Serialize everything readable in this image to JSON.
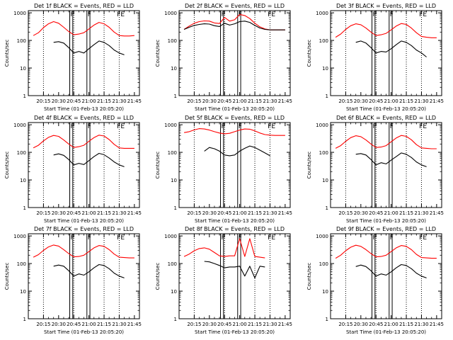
{
  "figure": {
    "background": "#ffffff",
    "axis_color": "#000000",
    "events_color": "#000000",
    "lld_color": "#ff0000"
  },
  "chart_data": [
    {
      "type": "line",
      "title": "Det 1f BLACK = Events, RED = LLD",
      "ylabel": "Counts/sec",
      "xlabel": "Start Time (01-Feb-13 20:05:20)",
      "xticks": [
        "20:15",
        "20:30",
        "20:45",
        "21:00",
        "21:15",
        "21:30",
        "21:45"
      ],
      "yticks": [
        "1",
        "10",
        "100",
        "1000"
      ],
      "yscale": "log",
      "ylim": [
        1,
        1200
      ],
      "x_minutes_since_start": [
        0,
        5,
        10,
        15,
        20,
        25,
        30,
        35,
        40,
        45,
        50,
        55,
        60,
        65,
        70,
        75,
        80,
        85,
        90,
        95,
        100
      ],
      "series": [
        {
          "name": "LLD",
          "values": [
            150,
            190,
            290,
            400,
            480,
            420,
            300,
            210,
            160,
            170,
            190,
            260,
            360,
            450,
            400,
            300,
            200,
            150,
            145,
            145,
            150
          ]
        },
        {
          "name": "Events",
          "values": [
            null,
            null,
            null,
            null,
            85,
            90,
            80,
            55,
            35,
            40,
            35,
            50,
            70,
            95,
            85,
            65,
            45,
            35,
            30,
            null,
            null
          ]
        }
      ],
      "vlines": {
        "dotted_min": [
          10,
          40,
          70,
          85
        ],
        "solid_min": [
          36,
          39,
          53,
          56
        ],
        "flag_min": [
          36,
          53,
          82
        ],
        "flag_labels": [
          "F",
          "F",
          "FE"
        ]
      }
    },
    {
      "type": "line",
      "title": "Det 2f BLACK = Events, RED = LLD",
      "ylabel": "Counts/sec",
      "xlabel": "Start Time (01-Feb-13 20:05:20)",
      "xticks": [
        "20:15",
        "20:30",
        "20:45",
        "21:00",
        "21:15",
        "21:30",
        "21:45"
      ],
      "yticks": [
        "1",
        "10",
        "100",
        "1000"
      ],
      "yscale": "log",
      "ylim": [
        1,
        1200
      ],
      "x_minutes_since_start": [
        0,
        5,
        10,
        15,
        20,
        25,
        30,
        35,
        40,
        45,
        50,
        55,
        60,
        65,
        70,
        75,
        80,
        85,
        90,
        95,
        100
      ],
      "series": [
        {
          "name": "LLD",
          "values": [
            250,
            330,
            420,
            480,
            510,
            500,
            430,
            410,
            680,
            500,
            560,
            870,
            800,
            620,
            420,
            310,
            260,
            240,
            240,
            240,
            240
          ]
        },
        {
          "name": "Events",
          "values": [
            250,
            300,
            350,
            380,
            400,
            390,
            340,
            320,
            420,
            360,
            400,
            480,
            500,
            450,
            350,
            280,
            250,
            240,
            240,
            240,
            240
          ]
        }
      ],
      "vlines": {
        "dotted_min": [
          10,
          40,
          70,
          85
        ],
        "solid_min": [
          36,
          39,
          53,
          56
        ],
        "flag_min": [
          36,
          53,
          82
        ],
        "flag_labels": [
          "F",
          "F",
          "FE"
        ]
      }
    },
    {
      "type": "line",
      "title": "Det 3f BLACK = Events, RED = LLD",
      "ylabel": "Counts/sec",
      "xlabel": "Start Time (01-Feb-13 20:05:20)",
      "xticks": [
        "20:15",
        "20:30",
        "20:45",
        "21:00",
        "21:15",
        "21:30",
        "21:45"
      ],
      "yticks": [
        "1",
        "10",
        "100",
        "1000"
      ],
      "yscale": "log",
      "ylim": [
        1,
        1200
      ],
      "x_minutes_since_start": [
        0,
        5,
        10,
        15,
        20,
        25,
        30,
        35,
        40,
        45,
        50,
        55,
        60,
        65,
        70,
        75,
        80,
        85,
        90,
        95,
        100
      ],
      "series": [
        {
          "name": "LLD",
          "values": [
            130,
            170,
            250,
            340,
            400,
            370,
            280,
            200,
            150,
            160,
            180,
            240,
            330,
            410,
            380,
            280,
            190,
            140,
            130,
            125,
            125
          ]
        },
        {
          "name": "Events",
          "values": [
            null,
            null,
            null,
            null,
            85,
            95,
            80,
            55,
            35,
            40,
            38,
            50,
            70,
            95,
            85,
            65,
            45,
            35,
            25,
            null,
            null
          ]
        }
      ],
      "vlines": {
        "dotted_min": [
          10,
          40,
          70,
          85
        ],
        "solid_min": [
          36,
          39,
          53,
          56
        ],
        "flag_min": [
          36,
          53,
          82
        ],
        "flag_labels": [
          "F",
          "F",
          "FE"
        ]
      }
    },
    {
      "type": "line",
      "title": "Det 4f BLACK = Events, RED = LLD",
      "ylabel": "Counts/sec",
      "xlabel": "Start Time (01-Feb-13 20:05:20)",
      "xticks": [
        "20:15",
        "20:30",
        "20:45",
        "21:00",
        "21:15",
        "21:30",
        "21:45"
      ],
      "yticks": [
        "1",
        "10",
        "100",
        "1000"
      ],
      "yscale": "log",
      "ylim": [
        1,
        1200
      ],
      "x_minutes_since_start": [
        0,
        5,
        10,
        15,
        20,
        25,
        30,
        35,
        40,
        45,
        50,
        55,
        60,
        65,
        70,
        75,
        80,
        85,
        90,
        95,
        100
      ],
      "series": [
        {
          "name": "LLD",
          "values": [
            145,
            180,
            260,
            350,
            410,
            380,
            280,
            200,
            150,
            160,
            180,
            250,
            340,
            420,
            390,
            290,
            195,
            145,
            140,
            140,
            140
          ]
        },
        {
          "name": "Events",
          "values": [
            null,
            null,
            null,
            null,
            80,
            88,
            78,
            55,
            35,
            40,
            36,
            50,
            70,
            92,
            82,
            62,
            45,
            35,
            30,
            null,
            null
          ]
        }
      ],
      "vlines": {
        "dotted_min": [
          10,
          40,
          70,
          85
        ],
        "solid_min": [
          36,
          39,
          53,
          56
        ],
        "flag_min": [
          36,
          53,
          82
        ],
        "flag_labels": [
          "F",
          "F",
          "FE"
        ]
      }
    },
    {
      "type": "line",
      "title": "Det 5f BLACK = Events, RED = LLD",
      "ylabel": "Counts/sec",
      "xlabel": "Start Time (01-Feb-13 20:05:20)",
      "xticks": [
        "20:15",
        "20:30",
        "20:45",
        "21:00",
        "21:15",
        "21:30",
        "21:45"
      ],
      "yticks": [
        "1",
        "10",
        "100",
        "1000"
      ],
      "yscale": "log",
      "ylim": [
        1,
        1200
      ],
      "x_minutes_since_start": [
        0,
        5,
        10,
        15,
        20,
        25,
        30,
        35,
        40,
        45,
        50,
        55,
        60,
        65,
        70,
        75,
        80,
        85,
        90,
        95,
        100
      ],
      "series": [
        {
          "name": "LLD",
          "values": [
            520,
            560,
            650,
            720,
            700,
            640,
            560,
            500,
            470,
            490,
            560,
            640,
            700,
            690,
            600,
            500,
            440,
            420,
            410,
            410,
            410
          ]
        },
        {
          "name": "Events",
          "values": [
            null,
            null,
            null,
            null,
            110,
            150,
            135,
            110,
            80,
            75,
            80,
            110,
            140,
            170,
            150,
            120,
            95,
            75,
            null,
            null,
            null
          ]
        }
      ],
      "vlines": {
        "dotted_min": [
          10,
          40,
          70,
          85
        ],
        "solid_min": [
          36,
          39,
          53,
          56
        ],
        "flag_min": [
          36,
          53,
          82
        ],
        "flag_labels": [
          "F",
          "F",
          "FE"
        ]
      }
    },
    {
      "type": "line",
      "title": "Det 6f BLACK = Events, RED = LLD",
      "ylabel": "Counts/sec",
      "xlabel": "Start Time (01-Feb-13 20:05:20)",
      "xticks": [
        "20:15",
        "20:30",
        "20:45",
        "21:00",
        "21:15",
        "21:30",
        "21:45"
      ],
      "yticks": [
        "1",
        "10",
        "100",
        "1000"
      ],
      "yscale": "log",
      "ylim": [
        1,
        1200
      ],
      "x_minutes_since_start": [
        0,
        5,
        10,
        15,
        20,
        25,
        30,
        35,
        40,
        45,
        50,
        55,
        60,
        65,
        70,
        75,
        80,
        85,
        90,
        95,
        100
      ],
      "series": [
        {
          "name": "LLD",
          "values": [
            140,
            175,
            250,
            340,
            400,
            370,
            280,
            200,
            150,
            155,
            175,
            240,
            330,
            410,
            380,
            285,
            190,
            145,
            140,
            135,
            135
          ]
        },
        {
          "name": "Events",
          "values": [
            null,
            null,
            null,
            null,
            85,
            90,
            80,
            55,
            35,
            42,
            38,
            52,
            70,
            95,
            85,
            65,
            45,
            35,
            30,
            null,
            null
          ]
        }
      ],
      "vlines": {
        "dotted_min": [
          10,
          40,
          70,
          85
        ],
        "solid_min": [
          36,
          39,
          53,
          56
        ],
        "flag_min": [
          36,
          53,
          82
        ],
        "flag_labels": [
          "F",
          "F",
          "FE"
        ]
      }
    },
    {
      "type": "line",
      "title": "Det 7f BLACK = Events, RED = LLD",
      "ylabel": "Counts/sec",
      "xlabel": "Start Time (01-Feb-13 20:05:20)",
      "xticks": [
        "20:15",
        "20:30",
        "20:45",
        "21:00",
        "21:15",
        "21:30",
        "21:45"
      ],
      "yticks": [
        "1",
        "10",
        "100",
        "1000"
      ],
      "yscale": "log",
      "ylim": [
        1,
        1200
      ],
      "x_minutes_since_start": [
        0,
        5,
        10,
        15,
        20,
        25,
        30,
        35,
        40,
        45,
        50,
        55,
        60,
        65,
        70,
        75,
        80,
        85,
        90,
        95,
        100
      ],
      "series": [
        {
          "name": "LLD",
          "values": [
            170,
            210,
            300,
            400,
            470,
            430,
            320,
            230,
            175,
            180,
            200,
            270,
            370,
            450,
            420,
            320,
            220,
            170,
            165,
            160,
            160
          ]
        },
        {
          "name": "Events",
          "values": [
            null,
            null,
            null,
            null,
            80,
            88,
            80,
            55,
            35,
            42,
            38,
            50,
            70,
            92,
            85,
            65,
            45,
            35,
            30,
            null,
            null
          ]
        }
      ],
      "vlines": {
        "dotted_min": [
          10,
          40,
          70,
          85
        ],
        "solid_min": [
          36,
          39,
          53,
          56
        ],
        "flag_min": [
          36,
          53,
          82
        ],
        "flag_labels": [
          "F",
          "F",
          "FE"
        ]
      }
    },
    {
      "type": "line",
      "title": "Det 8f BLACK = Events, RED = LLD",
      "ylabel": "Counts/sec",
      "xlabel": "Start Time (01-Feb-13 20:05:20)",
      "xticks": [
        "20:15",
        "20:30",
        "20:45",
        "21:00",
        "21:15",
        "21:30",
        "21:45"
      ],
      "yticks": [
        "1",
        "10",
        "100",
        "1000"
      ],
      "yscale": "log",
      "ylim": [
        1,
        1200
      ],
      "x_minutes_since_start": [
        0,
        5,
        10,
        15,
        20,
        25,
        30,
        35,
        40,
        45,
        50,
        55,
        60,
        65,
        70,
        75,
        80,
        85,
        90,
        95,
        100
      ],
      "series": [
        {
          "name": "LLD",
          "values": [
            180,
            220,
            290,
            350,
            370,
            330,
            250,
            190,
            180,
            190,
            190,
            800,
            180,
            800,
            180,
            170,
            160,
            null,
            null,
            null,
            null
          ]
        },
        {
          "name": "Events",
          "values": [
            null,
            null,
            null,
            null,
            120,
            115,
            100,
            85,
            70,
            75,
            75,
            80,
            35,
            80,
            30,
            80,
            75,
            null,
            null,
            null,
            null
          ]
        }
      ],
      "vlines": {
        "dotted_min": [
          10,
          40,
          70,
          85
        ],
        "solid_min": [
          36,
          39,
          53,
          56
        ],
        "flag_min": [
          36,
          53,
          82
        ],
        "flag_labels": [
          "F",
          "F",
          "FE"
        ]
      }
    },
    {
      "type": "line",
      "title": "Det 9f BLACK = Events, RED = LLD",
      "ylabel": "Counts/sec",
      "xlabel": "Start Time (01-Feb-13 20:05:20)",
      "xticks": [
        "20:15",
        "20:30",
        "20:45",
        "21:00",
        "21:15",
        "21:30",
        "21:45"
      ],
      "yticks": [
        "1",
        "10",
        "100",
        "1000"
      ],
      "yscale": "log",
      "ylim": [
        1,
        1200
      ],
      "x_minutes_since_start": [
        0,
        5,
        10,
        15,
        20,
        25,
        30,
        35,
        40,
        45,
        50,
        55,
        60,
        65,
        70,
        75,
        80,
        85,
        90,
        95,
        100
      ],
      "series": [
        {
          "name": "LLD",
          "values": [
            155,
            200,
            290,
            390,
            460,
            420,
            320,
            230,
            175,
            180,
            200,
            270,
            370,
            450,
            420,
            320,
            215,
            165,
            160,
            155,
            155
          ]
        },
        {
          "name": "Events",
          "values": [
            null,
            null,
            null,
            null,
            78,
            88,
            78,
            55,
            35,
            42,
            38,
            50,
            70,
            92,
            85,
            65,
            45,
            35,
            30,
            null,
            null
          ]
        }
      ],
      "vlines": {
        "dotted_min": [
          10,
          40,
          70,
          85
        ],
        "solid_min": [
          36,
          39,
          53,
          56
        ],
        "flag_min": [
          36,
          53,
          82
        ],
        "flag_labels": [
          "F",
          "F",
          "FE"
        ]
      }
    }
  ]
}
